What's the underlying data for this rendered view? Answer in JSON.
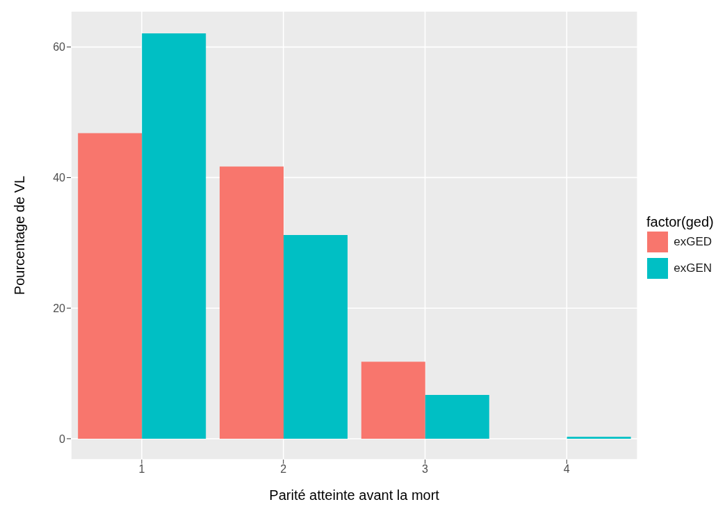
{
  "chart_data": {
    "type": "bar",
    "xlabel": "Parité atteinte avant la mort",
    "ylabel": "Pourcentage de VL",
    "legend_title": "factor(ged)",
    "categories": [
      "1",
      "2",
      "3",
      "4"
    ],
    "series": [
      {
        "name": "exGED",
        "color": "#f8766d",
        "values": [
          46.8,
          41.7,
          11.8,
          0
        ]
      },
      {
        "name": "exGEN",
        "color": "#00bfc4",
        "values": [
          62.1,
          31.2,
          6.7,
          0.3
        ]
      }
    ],
    "ylim": [
      -3.2,
      65.5
    ],
    "yticks": [
      0,
      20,
      40,
      60
    ],
    "grid": true,
    "legend": "right"
  }
}
